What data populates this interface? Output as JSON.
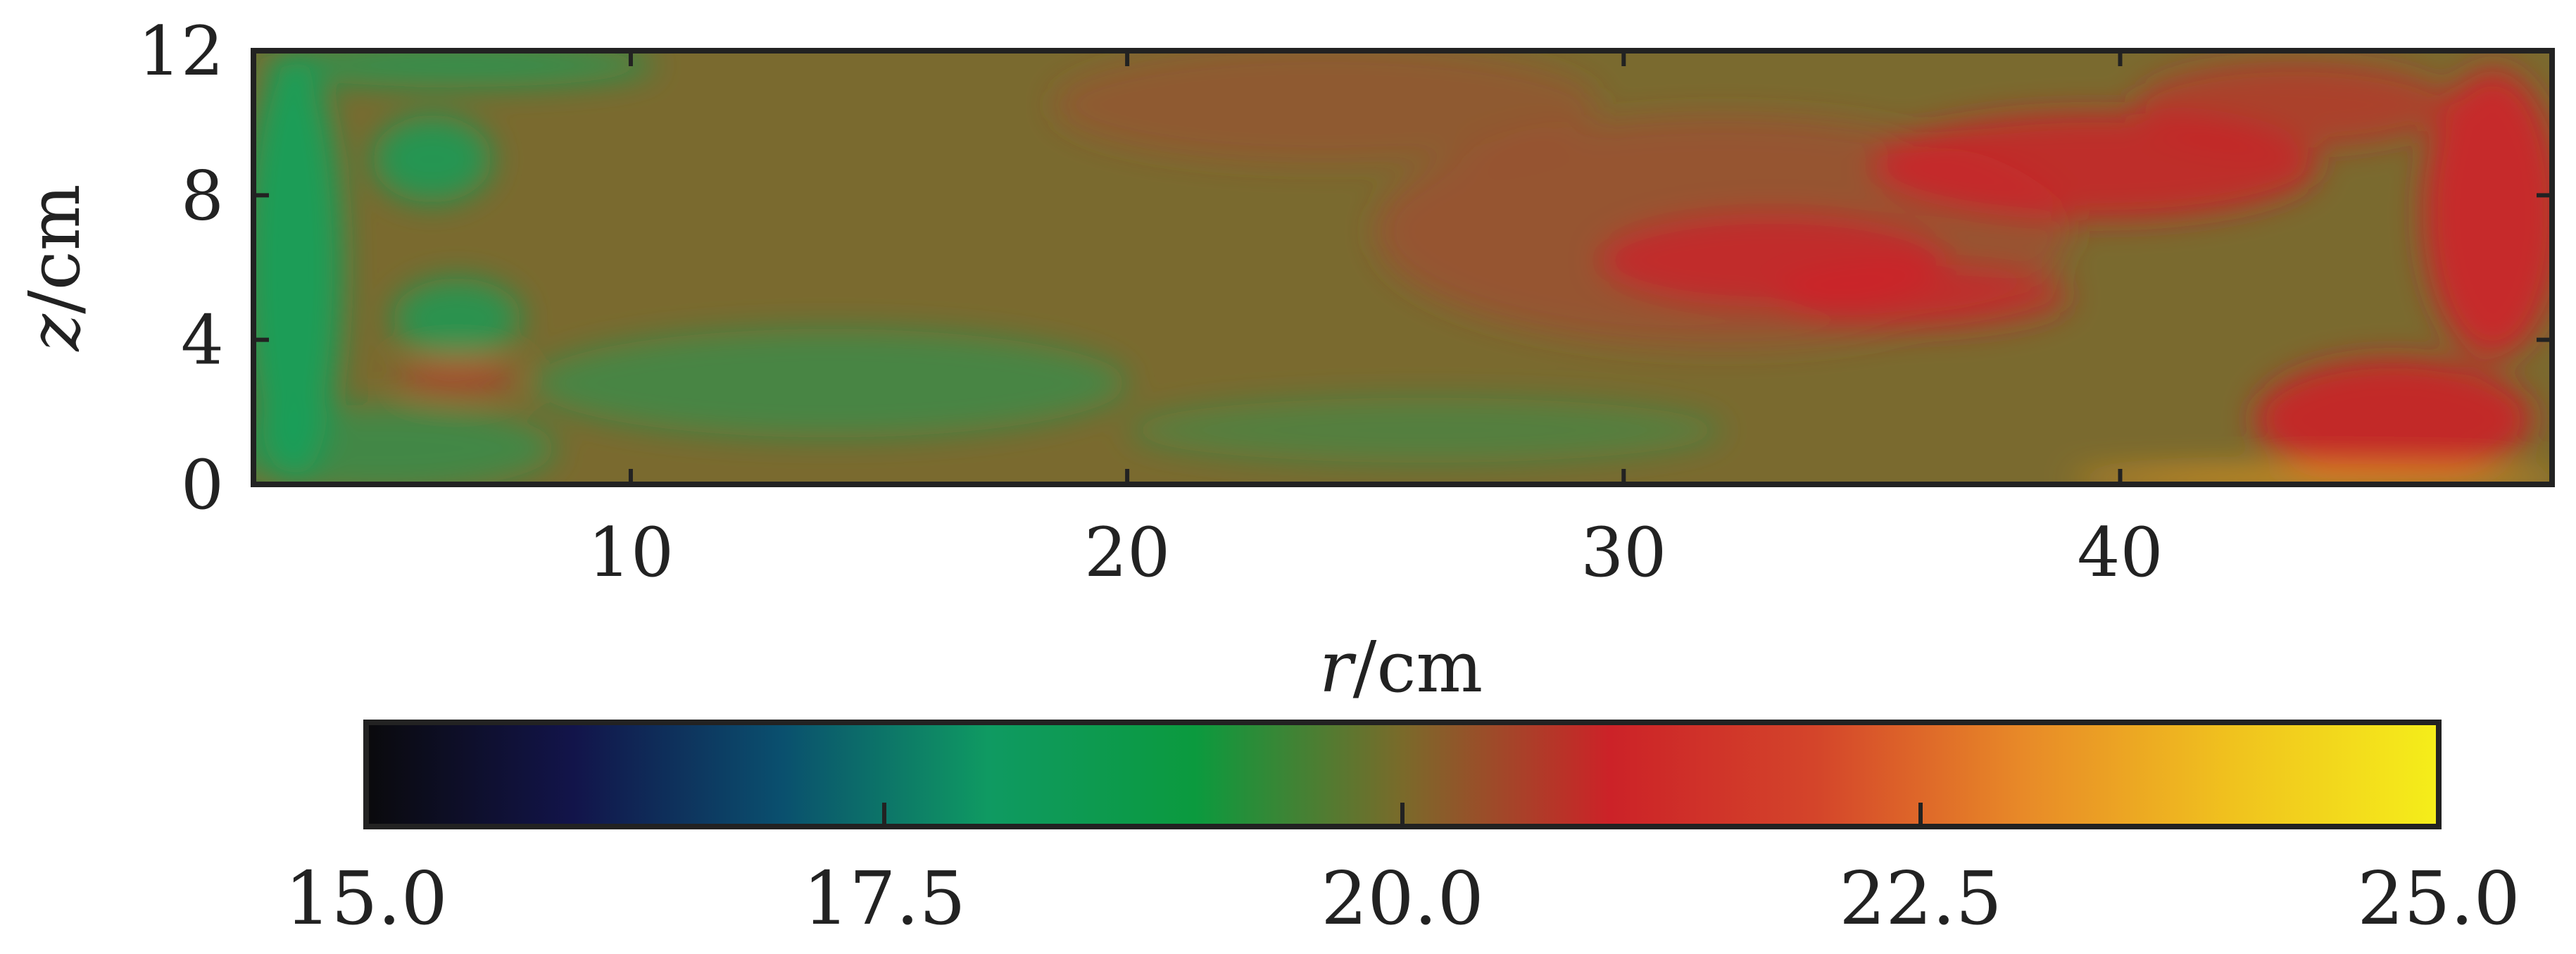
{
  "chart_data": {
    "type": "heatmap",
    "title": "",
    "xlabel": {
      "var": "r",
      "unit": "/cm"
    },
    "ylabel": {
      "var": "z",
      "unit": "/cm"
    },
    "xlim": [
      2.4,
      48.7
    ],
    "ylim": [
      0,
      12
    ],
    "x_ticks": [
      10,
      20,
      30,
      40
    ],
    "y_ticks": [
      0,
      4,
      8,
      12
    ],
    "colorbar": {
      "range": [
        15.0,
        25.0
      ],
      "ticks": [
        "15.0",
        "17.5",
        "20.0",
        "22.5",
        "25.0"
      ],
      "colors": [
        "#0a0a0c",
        "#12144a",
        "#0a4f6e",
        "#0f9a62",
        "#0b9a3e",
        "#7a6a2a",
        "#cc2228",
        "#d4452a",
        "#e88a28",
        "#f0c21e",
        "#f5ee1a"
      ]
    },
    "field": {
      "background_color": "#7a6a2f",
      "colors": {
        "cool": "#14a05a",
        "warm": "#d41c28",
        "warm_mid": "#b83a30",
        "hot": "#f6a01e",
        "neutral": "#7a6a2f"
      },
      "features": [
        {
          "kind": "cool",
          "level": 0.95,
          "cx": 3.2,
          "cz": 6.0,
          "rx": 1.0,
          "rz": 6.0
        },
        {
          "kind": "cool",
          "level": 0.8,
          "cx": 6.0,
          "cz": 9.0,
          "rx": 1.2,
          "rz": 1.2
        },
        {
          "kind": "cool",
          "level": 0.75,
          "cx": 6.5,
          "cz": 4.6,
          "rx": 1.3,
          "rz": 1.1
        },
        {
          "kind": "cool",
          "level": 0.7,
          "cx": 6.5,
          "cz": 11.6,
          "rx": 4.0,
          "rz": 0.6
        },
        {
          "kind": "cool",
          "level": 0.55,
          "cx": 5.0,
          "cz": 1.0,
          "rx": 3.5,
          "rz": 1.2
        },
        {
          "kind": "cool",
          "level": 0.5,
          "cx": 14.0,
          "cz": 2.8,
          "rx": 6.0,
          "rz": 1.5
        },
        {
          "kind": "cool",
          "level": 0.4,
          "cx": 26.0,
          "cz": 1.5,
          "rx": 6.0,
          "rz": 0.9
        },
        {
          "kind": "warm_mid",
          "level": 0.35,
          "cx": 24.0,
          "cz": 10.5,
          "rx": 5.5,
          "rz": 1.6
        },
        {
          "kind": "warm_mid",
          "level": 0.45,
          "cx": 32.0,
          "cz": 7.0,
          "rx": 7.0,
          "rz": 3.2
        },
        {
          "kind": "warm",
          "level": 0.75,
          "cx": 39.5,
          "cz": 8.8,
          "rx": 4.5,
          "rz": 1.5
        },
        {
          "kind": "warm",
          "level": 0.7,
          "cx": 33.0,
          "cz": 6.2,
          "rx": 3.5,
          "rz": 1.3
        },
        {
          "kind": "warm",
          "level": 0.65,
          "cx": 36.0,
          "cz": 5.2,
          "rx": 3.0,
          "rz": 0.9
        },
        {
          "kind": "warm",
          "level": 0.85,
          "cx": 47.5,
          "cz": 7.5,
          "rx": 1.4,
          "rz": 4.0
        },
        {
          "kind": "warm",
          "level": 0.8,
          "cx": 45.5,
          "cz": 1.8,
          "rx": 2.8,
          "rz": 1.7
        },
        {
          "kind": "warm",
          "level": 0.55,
          "cx": 43.5,
          "cz": 10.5,
          "rx": 3.2,
          "rz": 1.2
        },
        {
          "kind": "warm",
          "level": 0.5,
          "cx": 6.5,
          "cz": 3.0,
          "rx": 1.2,
          "rz": 0.5
        },
        {
          "kind": "hot",
          "level": 0.9,
          "cx": 44.0,
          "cz": 0.15,
          "rx": 5.0,
          "rz": 0.25
        }
      ]
    }
  }
}
